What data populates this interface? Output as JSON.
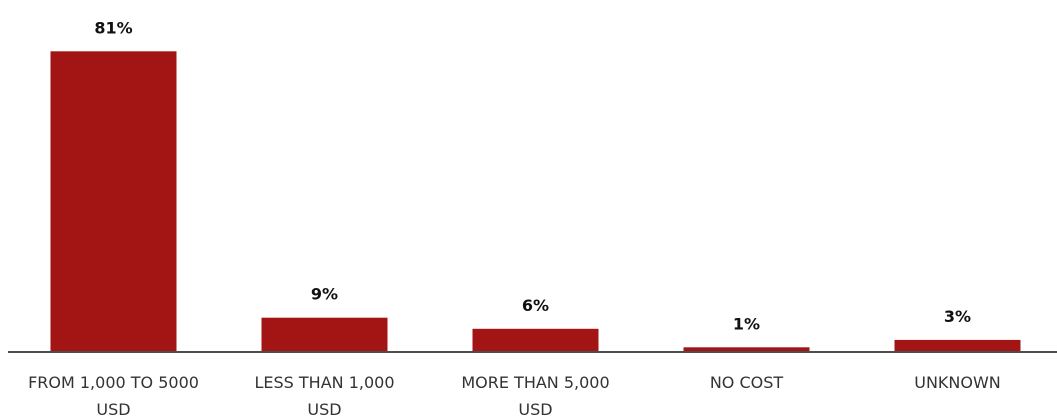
{
  "chart_data": {
    "type": "bar",
    "categories": [
      [
        "FROM 1,000 TO 5000",
        "USD"
      ],
      [
        "LESS THAN 1,000",
        "USD"
      ],
      [
        "MORE THAN 5,000",
        "USD"
      ],
      [
        "NO COST"
      ],
      [
        "UNKNOWN"
      ]
    ],
    "values": [
      81,
      9,
      6,
      1,
      3
    ],
    "data_labels": [
      "81%",
      "9%",
      "6%",
      "1%",
      "3%"
    ],
    "title": "",
    "xlabel": "",
    "ylabel": "",
    "ylim": [
      0,
      100
    ],
    "bar_color": "#a31515",
    "axis_color": "#4d4d4d",
    "grid": false,
    "legend": "none"
  }
}
